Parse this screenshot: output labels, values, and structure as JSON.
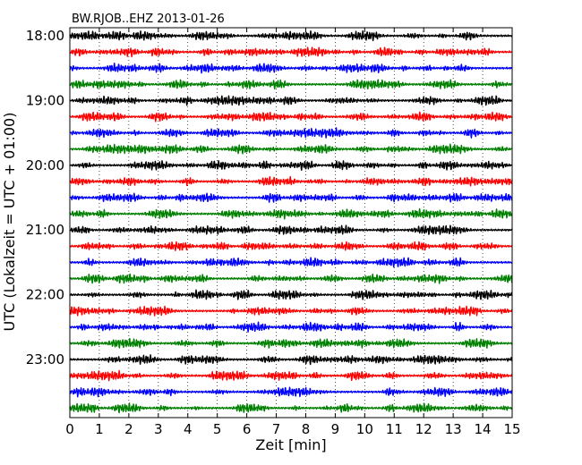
{
  "chart_data": {
    "type": "line",
    "title": "BW.RJOB..EHZ 2013-01-26",
    "xlabel": "Zeit  [min]",
    "ylabel": "UTC (Lokalzeit = UTC + 01:00)",
    "xlim": [
      0,
      15
    ],
    "x_ticks": [
      0,
      1,
      2,
      3,
      4,
      5,
      6,
      7,
      8,
      9,
      10,
      11,
      12,
      13,
      14,
      15
    ],
    "x_tick_labels": [
      "0",
      "1",
      "2",
      "3",
      "4",
      "5",
      "6",
      "7",
      "8",
      "9",
      "10",
      "11",
      "12",
      "13",
      "14",
      "15"
    ],
    "y_tick_labels": [
      "18:00",
      "19:00",
      "20:00",
      "21:00",
      "22:00",
      "23:00"
    ],
    "traces_per_hour": 4,
    "trace_minutes": 15,
    "trace_colors": [
      "#000000",
      "#ff0000",
      "#0000ff",
      "#008000"
    ],
    "grid": "vertical dotted",
    "series": [
      {
        "start": "18:00",
        "color": "#000000",
        "peaks": [
          [
            0.7,
            0.7
          ],
          [
            2.6,
            0.7
          ],
          [
            4.4,
            0.7
          ],
          [
            7.4,
            0.8
          ],
          [
            10.1,
            1.0
          ],
          [
            13.5,
            0.9
          ]
        ]
      },
      {
        "start": "18:15",
        "color": "#ff0000",
        "peaks": [
          [
            0.3,
            0.8
          ],
          [
            3.0,
            0.8
          ],
          [
            6.2,
            0.8
          ],
          [
            8.0,
            0.7
          ],
          [
            10.7,
            0.9
          ],
          [
            12.9,
            0.7
          ],
          [
            14.1,
            0.8
          ]
        ]
      },
      {
        "start": "18:30",
        "color": "#0000ff",
        "peaks": [
          [
            1.5,
            0.9
          ],
          [
            4.1,
            0.6
          ],
          [
            6.8,
            0.8
          ],
          [
            9.6,
            0.7
          ],
          [
            13.3,
            0.7
          ]
        ]
      },
      {
        "start": "18:45",
        "color": "#008000",
        "peaks": [
          [
            0.3,
            0.9
          ],
          [
            3.7,
            0.7
          ],
          [
            6.1,
            0.8
          ],
          [
            9.9,
            0.8
          ],
          [
            12.6,
            0.8
          ]
        ]
      },
      {
        "start": "19:00",
        "color": "#000000",
        "peaks": [
          [
            1.4,
            0.8
          ],
          [
            5.7,
            0.9
          ],
          [
            6.4,
            0.6
          ],
          [
            12.1,
            0.7
          ],
          [
            14.0,
            0.6
          ]
        ]
      },
      {
        "start": "19:15",
        "color": "#ff0000",
        "peaks": [
          [
            0.9,
            0.8
          ],
          [
            3.2,
            0.6
          ],
          [
            5.5,
            0.7
          ],
          [
            6.6,
            1.0
          ],
          [
            14.5,
            1.0
          ]
        ]
      },
      {
        "start": "19:30",
        "color": "#0000ff",
        "peaks": [
          [
            1.3,
            0.6
          ],
          [
            3.4,
            0.7
          ],
          [
            8.0,
            0.7
          ],
          [
            11.0,
            0.8
          ],
          [
            13.6,
            0.8
          ]
        ]
      },
      {
        "start": "19:45",
        "color": "#008000",
        "peaks": [
          [
            3.4,
            0.9
          ],
          [
            5.8,
            0.7
          ],
          [
            8.6,
            0.6
          ],
          [
            12.4,
            0.8
          ],
          [
            13.1,
            0.9
          ]
        ]
      },
      {
        "start": "20:00",
        "color": "#000000",
        "peaks": [
          [
            2.7,
            0.8
          ],
          [
            6.6,
            0.7
          ],
          [
            8.1,
            0.8
          ],
          [
            9.3,
            0.9
          ],
          [
            12.9,
            0.7
          ],
          [
            14.2,
            0.8
          ]
        ]
      },
      {
        "start": "20:15",
        "color": "#ff0000",
        "peaks": [
          [
            0.3,
            0.7
          ],
          [
            2.1,
            0.7
          ],
          [
            6.8,
            0.8
          ],
          [
            10.2,
            0.7
          ],
          [
            13.3,
            0.7
          ]
        ]
      },
      {
        "start": "20:30",
        "color": "#0000ff",
        "peaks": [
          [
            1.5,
            0.6
          ],
          [
            4.7,
            0.8
          ],
          [
            7.8,
            0.7
          ],
          [
            11.5,
            0.7
          ],
          [
            13.9,
            0.6
          ]
        ]
      },
      {
        "start": "20:45",
        "color": "#008000",
        "peaks": [
          [
            1.1,
            0.9
          ],
          [
            3.2,
            0.8
          ],
          [
            7.0,
            0.7
          ],
          [
            9.4,
            0.8
          ],
          [
            12.0,
            0.8
          ],
          [
            14.7,
            0.8
          ]
        ]
      },
      {
        "start": "21:00",
        "color": "#000000",
        "peaks": [
          [
            2.8,
            0.7
          ],
          [
            4.3,
            0.7
          ],
          [
            7.3,
            0.8
          ],
          [
            9.1,
            0.7
          ],
          [
            12.8,
            0.7
          ]
        ]
      },
      {
        "start": "21:15",
        "color": "#ff0000",
        "peaks": [
          [
            0.6,
            0.7
          ],
          [
            3.6,
            0.8
          ],
          [
            6.2,
            0.7
          ],
          [
            9.4,
            0.8
          ],
          [
            11.9,
            0.7
          ]
        ]
      },
      {
        "start": "21:30",
        "color": "#0000ff",
        "peaks": [
          [
            2.4,
            0.6
          ],
          [
            5.7,
            0.7
          ],
          [
            8.1,
            0.8
          ],
          [
            10.6,
            0.7
          ],
          [
            13.1,
            0.8
          ]
        ]
      },
      {
        "start": "21:45",
        "color": "#008000",
        "peaks": [
          [
            1.8,
            0.7
          ],
          [
            4.5,
            0.8
          ],
          [
            8.9,
            0.7
          ],
          [
            12.6,
            0.7
          ],
          [
            14.9,
            0.9
          ]
        ]
      },
      {
        "start": "22:00",
        "color": "#000000",
        "peaks": [
          [
            4.6,
            0.8
          ],
          [
            5.8,
            1.0
          ],
          [
            7.4,
            0.9
          ],
          [
            10.0,
            0.7
          ],
          [
            13.9,
            0.9
          ]
        ]
      },
      {
        "start": "22:15",
        "color": "#ff0000",
        "peaks": [
          [
            0.3,
            0.9
          ],
          [
            3.1,
            0.9
          ],
          [
            6.5,
            0.7
          ],
          [
            9.8,
            0.7
          ],
          [
            13.6,
            0.8
          ]
        ]
      },
      {
        "start": "22:30",
        "color": "#0000ff",
        "peaks": [
          [
            1.3,
            0.6
          ],
          [
            6.1,
            0.9
          ],
          [
            8.3,
            0.7
          ],
          [
            11.6,
            0.7
          ],
          [
            14.2,
            0.6
          ]
        ]
      },
      {
        "start": "22:45",
        "color": "#008000",
        "peaks": [
          [
            1.7,
            0.8
          ],
          [
            5.0,
            0.7
          ],
          [
            8.4,
            0.7
          ],
          [
            11.2,
            0.9
          ],
          [
            13.9,
            0.7
          ]
        ]
      },
      {
        "start": "23:00",
        "color": "#000000",
        "peaks": [
          [
            2.6,
            0.8
          ],
          [
            4.9,
            0.7
          ],
          [
            8.2,
            0.7
          ],
          [
            10.5,
            0.8
          ],
          [
            12.3,
            0.7
          ]
        ]
      },
      {
        "start": "23:15",
        "color": "#ff0000",
        "peaks": [
          [
            1.5,
            0.8
          ],
          [
            5.3,
            0.7
          ],
          [
            7.0,
            0.8
          ],
          [
            10.9,
            0.7
          ],
          [
            14.0,
            0.7
          ]
        ]
      },
      {
        "start": "23:30",
        "color": "#0000ff",
        "peaks": [
          [
            1.0,
            0.7
          ],
          [
            3.4,
            0.7
          ],
          [
            7.5,
            0.7
          ],
          [
            12.5,
            0.9
          ],
          [
            14.4,
            0.6
          ]
        ]
      },
      {
        "start": "23:45",
        "color": "#008000",
        "peaks": [
          [
            1.9,
            0.7
          ],
          [
            6.0,
            0.7
          ],
          [
            9.3,
            0.7
          ],
          [
            12.0,
            0.8
          ],
          [
            13.8,
            0.7
          ]
        ]
      }
    ]
  }
}
